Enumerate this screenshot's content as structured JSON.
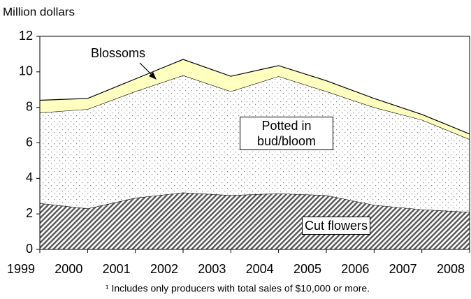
{
  "chart_data": {
    "type": "stacked_area",
    "y_label": "Million dollars",
    "footnote": "¹ Includes only producers with total sales of $10,000 or more.",
    "categories": [
      "1999",
      "2000",
      "2001",
      "2002",
      "2003",
      "2004",
      "2005",
      "2006",
      "2007",
      "2008"
    ],
    "series": [
      {
        "name": "Cut flowers",
        "color": "#555555",
        "values": [
          2.6,
          2.3,
          2.9,
          3.2,
          3.05,
          3.15,
          3.05,
          2.5,
          2.25,
          2.1
        ]
      },
      {
        "name": "Potted in bud/bloom",
        "color": "#888888",
        "values": [
          5.1,
          5.6,
          6.0,
          6.6,
          5.85,
          6.6,
          5.85,
          5.5,
          5.05,
          4.1
        ]
      },
      {
        "name": "Blossoms",
        "color": "#ffffc0",
        "values": [
          0.7,
          0.6,
          0.7,
          0.9,
          0.85,
          0.6,
          0.6,
          0.5,
          0.3,
          0.3
        ]
      }
    ],
    "ylim": [
      0,
      12
    ],
    "yticks": [
      0,
      2,
      4,
      6,
      8,
      10,
      12
    ]
  }
}
